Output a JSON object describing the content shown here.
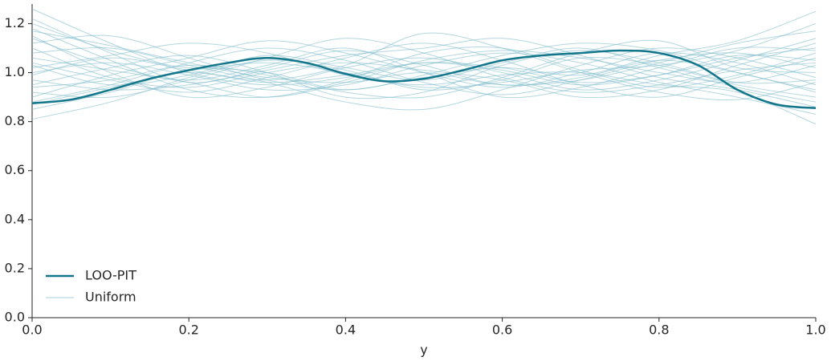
{
  "chart_data": {
    "type": "line",
    "xlabel": "y",
    "xlim": [
      0,
      1
    ],
    "ylim": [
      0,
      1.28
    ],
    "xticks": [
      {
        "value": 0,
        "label": "0.0"
      },
      0.2,
      0.4,
      0.6,
      0.8,
      {
        "value": 1,
        "label": "1.0"
      }
    ],
    "yticks": [
      {
        "value": 0,
        "label": "0.0"
      },
      0.2,
      0.4,
      0.6,
      0.8,
      {
        "value": 1,
        "label": "1.0"
      },
      1.2
    ],
    "legend": "lower left",
    "series": [
      {
        "name": "LOO-PIT",
        "color": "#13768a",
        "x": [
          0,
          0.05,
          0.1,
          0.15,
          0.2,
          0.25,
          0.3,
          0.35,
          0.4,
          0.45,
          0.5,
          0.55,
          0.6,
          0.65,
          0.7,
          0.75,
          0.8,
          0.85,
          0.9,
          0.95,
          1
        ],
        "values": [
          0.875,
          0.89,
          0.93,
          0.975,
          1.01,
          1.04,
          1.06,
          1.04,
          0.995,
          0.965,
          0.975,
          1.01,
          1.05,
          1.07,
          1.08,
          1.09,
          1.08,
          1.03,
          0.93,
          0.87,
          0.855
        ]
      },
      {
        "name": "Uniform",
        "color": "#80bccb",
        "x": [
          0,
          0.1,
          0.2,
          0.3,
          0.4,
          0.5,
          0.6,
          0.7,
          0.8,
          0.9,
          1
        ],
        "lines": [
          [
            1.26,
            1.12,
            1.0,
            0.95,
            0.98,
            1.04,
            1.02,
            0.96,
            0.99,
            1.06,
            1.1
          ],
          [
            1.22,
            1.08,
            0.96,
            1.02,
            1.09,
            1.03,
            0.95,
            0.98,
            1.05,
            1.0,
            0.92
          ],
          [
            0.81,
            0.88,
            0.98,
            1.05,
            1.01,
            0.93,
            0.97,
            1.06,
            1.03,
            0.95,
            0.9
          ],
          [
            1.18,
            1.05,
            0.93,
            0.9,
            0.97,
            1.08,
            1.1,
            1.01,
            0.94,
            0.99,
            1.08
          ],
          [
            0.95,
            1.02,
            1.07,
            1.0,
            0.9,
            0.92,
            1.03,
            1.09,
            1.04,
            0.96,
            0.97
          ],
          [
            1.04,
            0.97,
            0.92,
            0.98,
            1.06,
            1.12,
            1.05,
            0.95,
            0.9,
            0.98,
            1.06
          ],
          [
            1.12,
            1.15,
            1.06,
            0.97,
            0.93,
            0.98,
            1.02,
            0.99,
            1.07,
            1.13,
            1.25
          ],
          [
            0.88,
            0.95,
            1.04,
            1.1,
            1.05,
            0.96,
            0.91,
            0.97,
            1.05,
            1.08,
            1.02
          ],
          [
            1.0,
            1.04,
            0.99,
            0.93,
            0.95,
            1.03,
            1.08,
            1.04,
            0.96,
            0.9,
            0.83
          ],
          [
            1.15,
            1.0,
            0.9,
            0.94,
            1.02,
            1.06,
            1.0,
            0.93,
            0.97,
            1.05,
            1.14
          ],
          [
            0.92,
            0.9,
            0.97,
            1.06,
            1.14,
            1.08,
            0.98,
            0.92,
            0.95,
            1.01,
            1.04
          ],
          [
            1.08,
            1.1,
            1.03,
            0.96,
            0.88,
            0.85,
            0.93,
            1.03,
            1.1,
            1.06,
            0.98
          ],
          [
            0.97,
            0.93,
            0.95,
            1.01,
            1.07,
            1.1,
            1.14,
            1.07,
            0.98,
            0.93,
            0.86
          ],
          [
            1.2,
            1.09,
            1.02,
            1.04,
            1.0,
            0.94,
            0.96,
            1.01,
            1.03,
            1.09,
            1.2
          ],
          [
            0.85,
            0.92,
            1.01,
            1.0,
            0.93,
            0.99,
            1.07,
            1.12,
            1.09,
            1.0,
            0.93
          ],
          [
            1.02,
            1.07,
            1.12,
            1.08,
            0.99,
            0.95,
            0.99,
            1.0,
            0.95,
            0.92,
            0.79
          ],
          [
            1.1,
            0.98,
            0.94,
            1.0,
            1.04,
            1.01,
            0.97,
            0.9,
            0.93,
            1.03,
            1.12
          ],
          [
            0.9,
            0.99,
            1.06,
            1.13,
            1.08,
            1.0,
            0.94,
            1.0,
            1.08,
            1.04,
            0.95
          ],
          [
            1.06,
            1.01,
            0.96,
            0.9,
            0.96,
            1.05,
            1.09,
            1.06,
            1.0,
            0.96,
            1.03
          ],
          [
            0.99,
            1.06,
            1.01,
            0.97,
            1.03,
            1.16,
            1.1,
            1.0,
            0.92,
            0.89,
            0.96
          ],
          [
            1.14,
            1.03,
            0.97,
            1.03,
            1.1,
            1.0,
            0.9,
            0.94,
            1.02,
            1.1,
            1.09
          ],
          [
            0.94,
            0.97,
            1.03,
            0.99,
            0.92,
            0.9,
            0.98,
            1.08,
            1.13,
            1.02,
            1.0
          ],
          [
            1.03,
            0.95,
            0.99,
            1.07,
            1.02,
            0.97,
            1.04,
            1.1,
            1.02,
            0.94,
            0.88
          ],
          [
            1.17,
            1.11,
            1.04,
            0.98,
            0.96,
            1.0,
            0.95,
            0.97,
            1.04,
            1.12,
            1.17
          ],
          [
            0.87,
            0.94,
            1.0,
            0.96,
            0.99,
            1.04,
            1.01,
            0.95,
            0.99,
            1.07,
            1.05
          ]
        ]
      }
    ]
  }
}
